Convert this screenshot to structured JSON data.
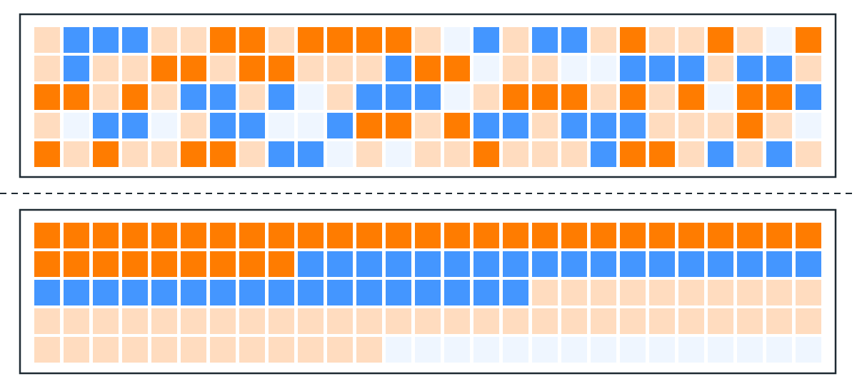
{
  "palette": [
    "#ff7c00",
    "#4496ff",
    "#ffdcbf",
    "#eff6ff"
  ],
  "grids": [
    {
      "rows": [
        [
          2,
          1,
          1,
          1,
          2,
          2,
          0,
          0,
          2,
          0,
          0,
          0,
          0,
          2,
          3,
          1,
          2,
          1,
          1,
          2,
          0,
          2,
          2,
          0,
          2,
          3,
          0
        ],
        [
          2,
          1,
          2,
          2,
          0,
          0,
          2,
          0,
          0,
          2,
          2,
          2,
          1,
          0,
          0,
          3,
          2,
          2,
          3,
          3,
          1,
          1,
          1,
          2,
          1,
          1,
          2
        ],
        [
          0,
          0,
          2,
          0,
          2,
          1,
          1,
          2,
          1,
          3,
          2,
          1,
          1,
          1,
          3,
          2,
          0,
          0,
          0,
          2,
          0,
          2,
          0,
          3,
          0,
          0,
          1
        ],
        [
          2,
          3,
          1,
          1,
          3,
          2,
          1,
          1,
          3,
          3,
          1,
          0,
          0,
          2,
          0,
          1,
          1,
          2,
          1,
          1,
          1,
          2,
          2,
          2,
          0,
          2,
          3
        ],
        [
          0,
          2,
          0,
          2,
          2,
          0,
          0,
          2,
          1,
          1,
          3,
          2,
          3,
          2,
          2,
          0,
          2,
          2,
          2,
          1,
          0,
          0,
          2,
          1,
          2,
          1,
          2
        ]
      ]
    },
    {
      "rows": [
        [
          0,
          0,
          0,
          0,
          0,
          0,
          0,
          0,
          0,
          0,
          0,
          0,
          0,
          0,
          0,
          0,
          0,
          0,
          0,
          0,
          0,
          0,
          0,
          0,
          0,
          0,
          0
        ],
        [
          0,
          0,
          0,
          0,
          0,
          0,
          0,
          0,
          0,
          1,
          1,
          1,
          1,
          1,
          1,
          1,
          1,
          1,
          1,
          1,
          1,
          1,
          1,
          1,
          1,
          1,
          1
        ],
        [
          1,
          1,
          1,
          1,
          1,
          1,
          1,
          1,
          1,
          1,
          1,
          1,
          1,
          1,
          1,
          1,
          1,
          2,
          2,
          2,
          2,
          2,
          2,
          2,
          2,
          2,
          2
        ],
        [
          2,
          2,
          2,
          2,
          2,
          2,
          2,
          2,
          2,
          2,
          2,
          2,
          2,
          2,
          2,
          2,
          2,
          2,
          2,
          2,
          2,
          2,
          2,
          2,
          2,
          2,
          2
        ],
        [
          2,
          2,
          2,
          2,
          2,
          2,
          2,
          2,
          2,
          2,
          2,
          2,
          3,
          3,
          3,
          3,
          3,
          3,
          3,
          3,
          3,
          3,
          3,
          3,
          3,
          3,
          3
        ]
      ]
    }
  ]
}
